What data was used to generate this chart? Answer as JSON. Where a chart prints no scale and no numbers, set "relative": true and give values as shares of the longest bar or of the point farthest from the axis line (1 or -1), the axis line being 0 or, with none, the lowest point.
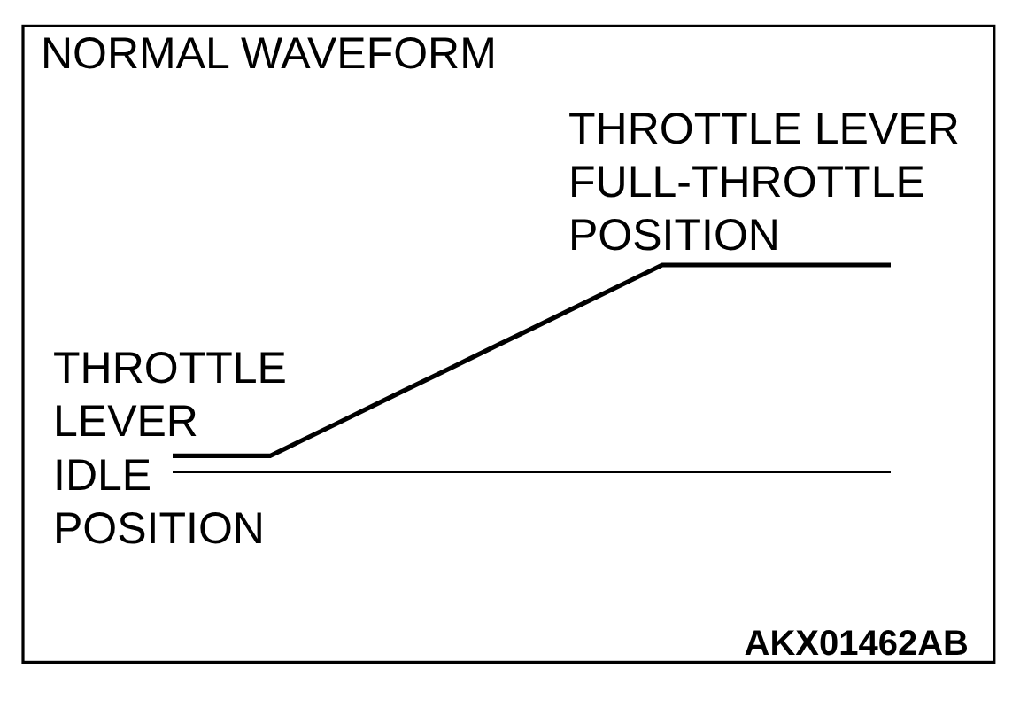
{
  "chart_data": {
    "type": "line",
    "title": "NORMAL WAVEFORM",
    "relative": true,
    "categories": [
      null,
      null,
      null,
      null,
      null,
      null,
      null,
      null,
      null,
      null,
      null,
      null,
      null,
      null,
      null,
      null,
      null,
      null,
      null,
      null,
      null,
      null,
      null
    ],
    "values": [
      0.08,
      0.08,
      0.08,
      0.08,
      0.157,
      0.233,
      0.31,
      0.387,
      0.463,
      0.54,
      0.617,
      0.693,
      0.77,
      0.847,
      0.923,
      1,
      1,
      1,
      1,
      1,
      1,
      1,
      1
    ],
    "color": "#000000",
    "line_style": "solid",
    "annotations": [
      "THROTTLE LEVER\nFULL-THROTTLE\nPOSITION",
      "THROTTLE\nLEVER\nIDLE\nPOSITION",
      "AKX01462AB"
    ]
  }
}
